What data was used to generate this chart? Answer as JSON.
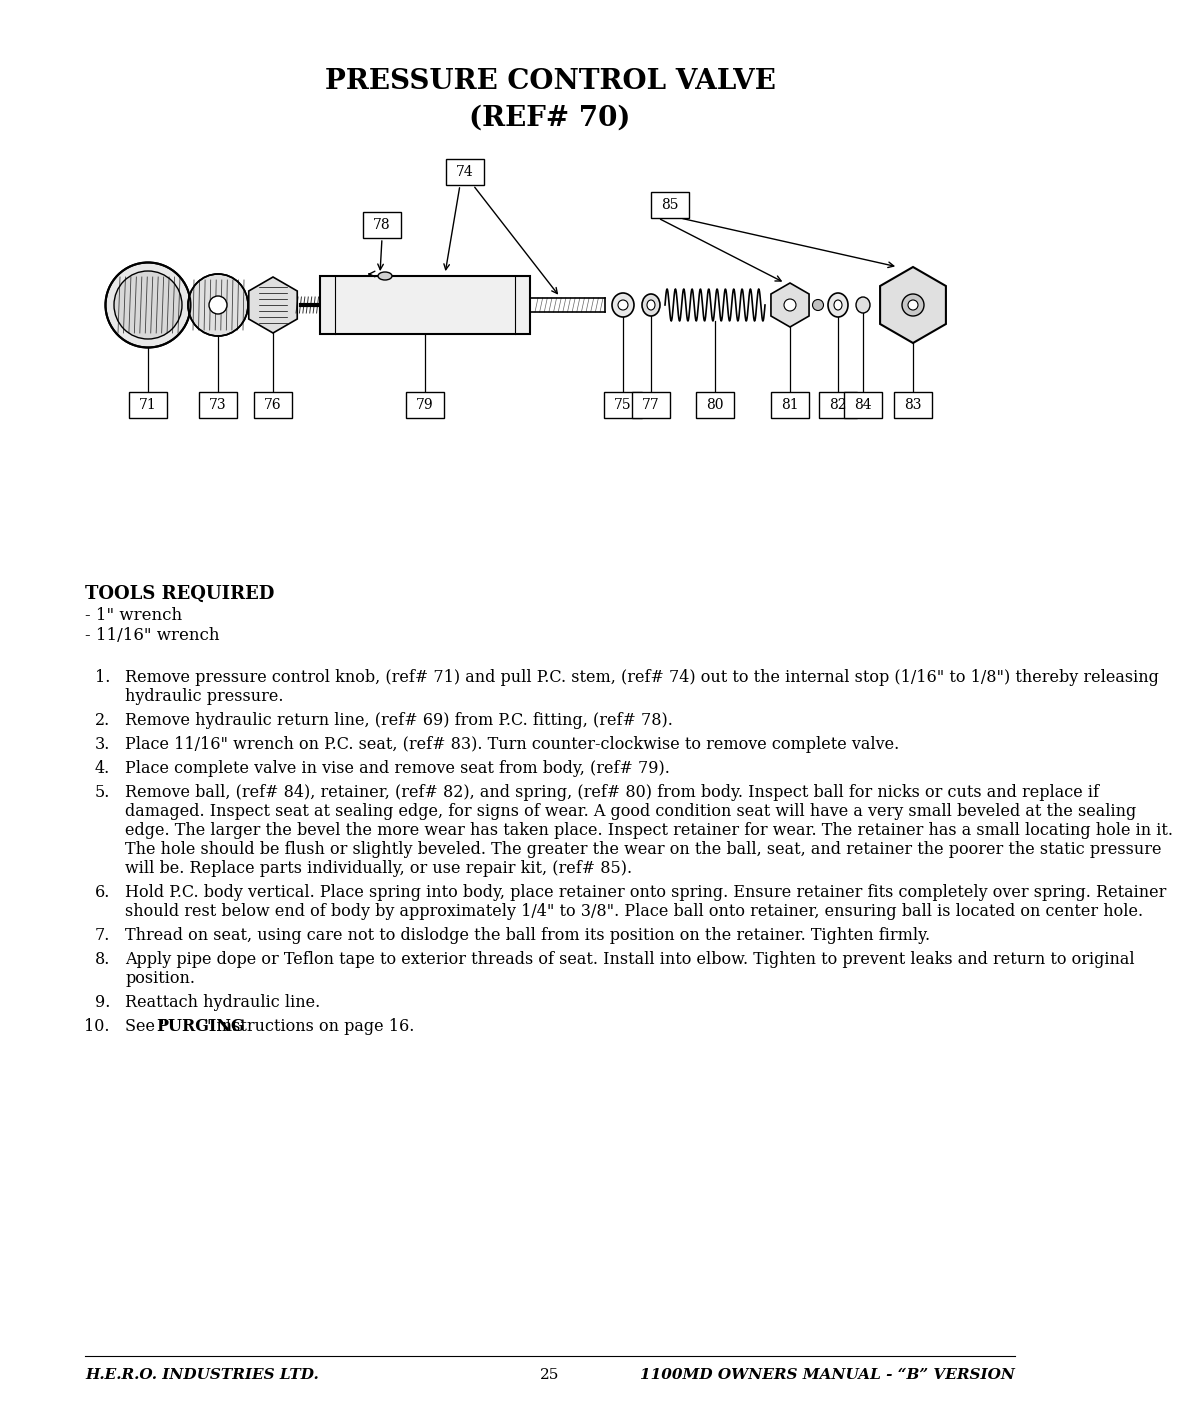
{
  "title_line1": "PRESSURE CONTROL VALVE",
  "title_line2": "(REF# 70)",
  "bg_color": "#ffffff",
  "text_color": "#000000",
  "footer_left": "H.E.R.O. INDUSTRIES LTD.",
  "footer_center": "25",
  "footer_right": "1100MD OWNERS MANUAL - “B” VERSION",
  "tools_required_header": "TOOLS REQUIRED",
  "tools_list": [
    "- 1\" wrench",
    "- 11/16\" wrench"
  ],
  "instructions": [
    "Remove pressure control knob, (ref# 71) and pull P.C. stem, (ref# 74) out to the internal stop (1/16\" to 1/8\") thereby releasing hydraulic pressure.",
    "Remove hydraulic return line, (ref# 69) from P.C. fitting, (ref# 78).",
    "Place 11/16\" wrench on P.C. seat, (ref# 83). Turn counter-clockwise to remove complete valve.",
    "Place complete valve in vise and remove seat from body, (ref# 79).",
    "Remove ball, (ref# 84), retainer, (ref# 82), and spring, (ref# 80) from body. Inspect ball for nicks or cuts and replace if damaged. Inspect seat at sealing edge, for signs of wear. A good condition seat will have a very small beveled at the sealing edge. The larger the bevel the more wear has taken place. Inspect retainer for wear. The retainer has a small locating hole in it. The hole should be flush or slightly beveled. The greater the wear on the ball, seat, and retainer the poorer the static pressure will be. Replace parts individually, or use repair kit, (ref# 85).",
    "Hold P.C. body vertical. Place spring into body, place retainer onto spring. Ensure retainer fits completely over spring. Retainer should rest below end of body by approximately 1/4\" to 3/8\". Place ball onto retainer, ensuring ball is located on center hole.",
    "Thread on seat, using care not to dislodge the ball from its position on the retainer. Tighten firmly.",
    "Apply pipe dope or Teflon tape to exterior threads of seat. Install into elbow. Tighten to prevent leaks and  return to original position.",
    "Reattach hydraulic line.",
    "See \"PURGING\" instructions on page 16."
  ]
}
